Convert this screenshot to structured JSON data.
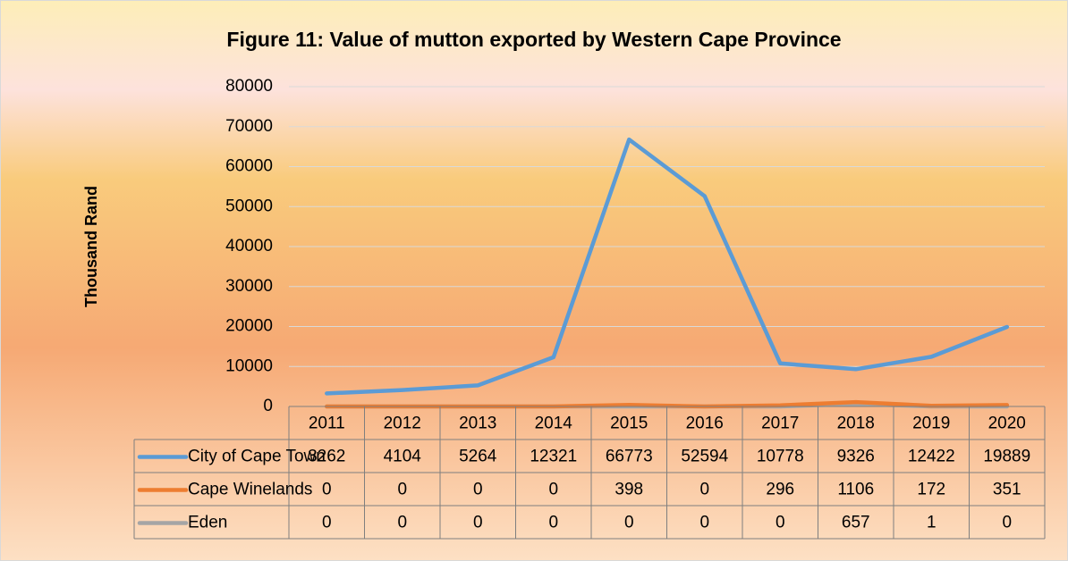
{
  "chart_data": {
    "type": "line",
    "title": "Figure 11: Value of mutton exported by Western Cape Province",
    "y_label": "Thousand Rand",
    "categories": [
      "2011",
      "2012",
      "2013",
      "2014",
      "2015",
      "2016",
      "2017",
      "2018",
      "2019",
      "2020"
    ],
    "series": [
      {
        "name": "City of Cape Town",
        "color": "#5b9bd5",
        "values": [
          3262,
          4104,
          5264,
          12321,
          66773,
          52594,
          10778,
          9326,
          12422,
          19889
        ]
      },
      {
        "name": "Cape Winelands",
        "color": "#ed7d31",
        "values": [
          0,
          0,
          0,
          0,
          398,
          0,
          296,
          1106,
          172,
          351
        ]
      },
      {
        "name": "Eden",
        "color": "#a5a5a5",
        "values": [
          0,
          0,
          0,
          0,
          0,
          0,
          0,
          657,
          1,
          0
        ]
      }
    ],
    "ylim": [
      0,
      80000
    ],
    "yticks": [
      0,
      10000,
      20000,
      30000,
      40000,
      50000,
      60000,
      70000,
      80000
    ],
    "grid": true,
    "data_table": true
  }
}
